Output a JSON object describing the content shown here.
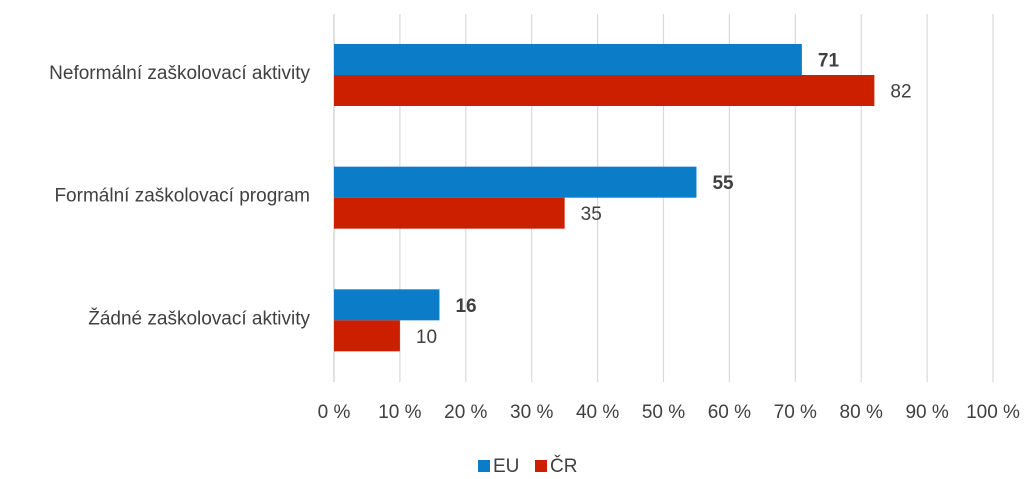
{
  "chart_data": {
    "type": "bar",
    "orientation": "horizontal",
    "categories": [
      "Neformální zaškolovací aktivity",
      "Formální zaškolovací program",
      "Žádné zaškolovací aktivity"
    ],
    "series": [
      {
        "name": "EU",
        "values": [
          71,
          55,
          16
        ],
        "color": "#0a7cc8",
        "label_style": "bold"
      },
      {
        "name": "ČR",
        "values": [
          82,
          35,
          10
        ],
        "color": "#cc1f00",
        "label_style": "normal"
      }
    ],
    "xlim": [
      0,
      100
    ],
    "xticks": [
      "0 %",
      "10 %",
      "20 %",
      "30 %",
      "40 %",
      "50 %",
      "60 %",
      "70 %",
      "80 %",
      "90 %",
      "100 %"
    ],
    "grid": true,
    "legend": "bottom"
  }
}
